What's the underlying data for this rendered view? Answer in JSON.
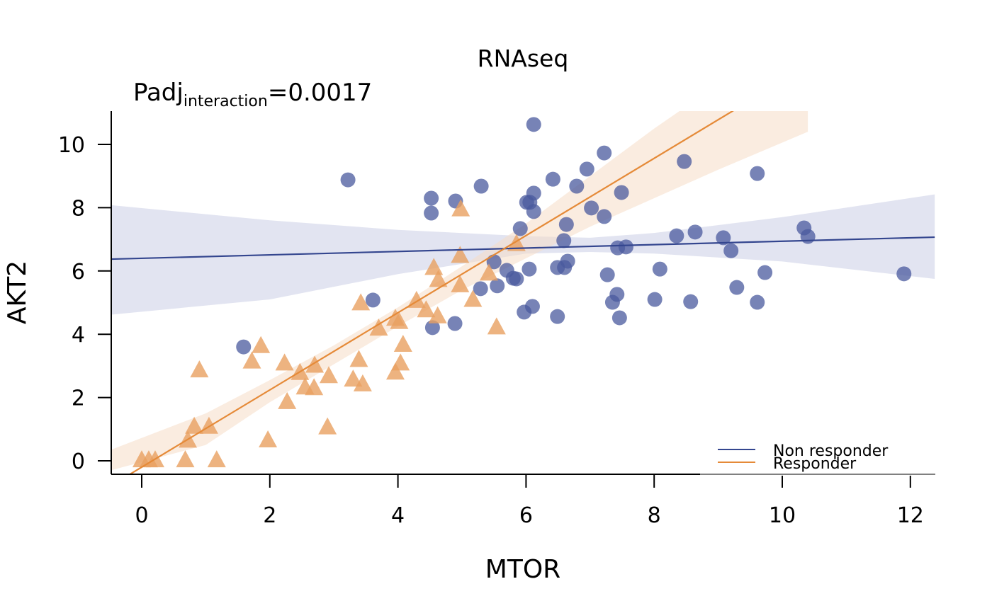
{
  "chart_data": {
    "type": "scatter",
    "title": "RNAseq",
    "annotation": {
      "main": "Padj",
      "subscript": "interaction",
      "suffix": "=0.0017"
    },
    "xlabel": "MTOR",
    "ylabel": "AKT2",
    "xlim": [
      -0.48,
      12.38
    ],
    "ylim": [
      -0.4,
      11.05
    ],
    "xticks": [
      0,
      2,
      4,
      6,
      8,
      10,
      12
    ],
    "yticks": [
      0,
      2,
      4,
      6,
      8,
      10
    ],
    "xtick_labels": [
      "0",
      "2",
      "4",
      "6",
      "8",
      "10",
      "12"
    ],
    "ytick_labels": [
      "0",
      "2",
      "4",
      "6",
      "8",
      "10"
    ],
    "grid": false,
    "legend": {
      "position": "bottom-right",
      "entries": [
        "Non responder",
        "Responder"
      ]
    },
    "series": [
      {
        "name": "Non responder",
        "marker": "circle",
        "color": "#4a5a9e",
        "line_color": "#34468f",
        "band_color": "#c5c9e3",
        "fit": {
          "intercept": 6.4,
          "slope": 0.054
        },
        "ci": [
          [
            -0.48,
            4.62,
            8.08
          ],
          [
            2,
            5.1,
            7.6
          ],
          [
            4,
            5.9,
            7.3
          ],
          [
            6,
            6.55,
            7.1
          ],
          [
            7,
            6.6,
            7.05
          ],
          [
            8,
            6.55,
            7.2
          ],
          [
            10,
            6.3,
            7.7
          ],
          [
            12.38,
            5.75,
            8.42
          ]
        ],
        "points": [
          [
            6.12,
            10.63
          ],
          [
            7.22,
            9.73
          ],
          [
            8.47,
            9.46
          ],
          [
            9.61,
            9.08
          ],
          [
            3.22,
            8.88
          ],
          [
            6.95,
            9.22
          ],
          [
            6.42,
            8.9
          ],
          [
            5.3,
            8.68
          ],
          [
            6.79,
            8.68
          ],
          [
            4.52,
            8.3
          ],
          [
            4.9,
            8.21
          ],
          [
            6.12,
            8.46
          ],
          [
            7.49,
            8.48
          ],
          [
            4.52,
            7.83
          ],
          [
            6.01,
            8.17
          ],
          [
            6.06,
            8.17
          ],
          [
            6.12,
            7.88
          ],
          [
            7.02,
            7.99
          ],
          [
            7.22,
            7.72
          ],
          [
            5.91,
            7.34
          ],
          [
            6.63,
            7.47
          ],
          [
            8.35,
            7.11
          ],
          [
            8.64,
            7.23
          ],
          [
            9.08,
            7.05
          ],
          [
            10.34,
            7.36
          ],
          [
            10.4,
            7.09
          ],
          [
            9.2,
            6.64
          ],
          [
            6.59,
            6.96
          ],
          [
            7.43,
            6.73
          ],
          [
            7.56,
            6.76
          ],
          [
            5.5,
            6.29
          ],
          [
            6.65,
            6.31
          ],
          [
            5.7,
            6.02
          ],
          [
            6.05,
            6.06
          ],
          [
            6.49,
            6.11
          ],
          [
            6.6,
            6.11
          ],
          [
            7.27,
            5.88
          ],
          [
            8.09,
            6.06
          ],
          [
            9.73,
            5.95
          ],
          [
            11.9,
            5.91
          ],
          [
            5.8,
            5.77
          ],
          [
            5.85,
            5.75
          ],
          [
            5.55,
            5.53
          ],
          [
            5.29,
            5.44
          ],
          [
            9.29,
            5.48
          ],
          [
            7.42,
            5.26
          ],
          [
            7.35,
            5.01
          ],
          [
            8.01,
            5.1
          ],
          [
            8.57,
            5.03
          ],
          [
            9.61,
            5.01
          ],
          [
            3.61,
            5.08
          ],
          [
            6.1,
            4.88
          ],
          [
            5.97,
            4.7
          ],
          [
            6.49,
            4.56
          ],
          [
            7.46,
            4.52
          ],
          [
            4.89,
            4.34
          ],
          [
            4.54,
            4.21
          ],
          [
            1.59,
            3.6
          ]
        ]
      },
      {
        "name": "Responder",
        "marker": "triangle",
        "color": "#e8a060",
        "line_color": "#e58a38",
        "band_color": "#f6dcc6",
        "fit": {
          "intercept": -0.2,
          "slope": 1.22
        },
        "ci": [
          [
            -0.48,
            -0.3,
            0.35
          ],
          [
            1,
            0.5,
            1.5
          ],
          [
            2,
            1.85,
            2.55
          ],
          [
            3,
            3.05,
            3.65
          ],
          [
            4,
            4.25,
            4.85
          ],
          [
            5,
            5.4,
            6.15
          ],
          [
            6,
            6.4,
            7.5
          ],
          [
            7,
            7.4,
            9.0
          ],
          [
            8,
            8.3,
            10.5
          ],
          [
            9,
            9.2,
            11.9
          ],
          [
            10.4,
            10.4,
            13.9
          ]
        ],
        "points": [
          [
            4.98,
            7.95
          ],
          [
            5.85,
            6.85
          ],
          [
            4.97,
            6.48
          ],
          [
            4.56,
            6.1
          ],
          [
            5.42,
            5.92
          ],
          [
            4.63,
            5.72
          ],
          [
            4.97,
            5.55
          ],
          [
            3.42,
            4.98
          ],
          [
            5.17,
            5.09
          ],
          [
            4.29,
            5.06
          ],
          [
            3.96,
            4.49
          ],
          [
            4.02,
            4.39
          ],
          [
            4.44,
            4.76
          ],
          [
            4.62,
            4.57
          ],
          [
            3.7,
            4.18
          ],
          [
            5.54,
            4.22
          ],
          [
            1.86,
            3.63
          ],
          [
            4.08,
            3.67
          ],
          [
            1.72,
            3.14
          ],
          [
            3.39,
            3.19
          ],
          [
            2.23,
            3.08
          ],
          [
            2.7,
            3.01
          ],
          [
            4.04,
            3.08
          ],
          [
            0.9,
            2.86
          ],
          [
            2.47,
            2.78
          ],
          [
            2.92,
            2.68
          ],
          [
            3.96,
            2.79
          ],
          [
            3.3,
            2.57
          ],
          [
            3.45,
            2.42
          ],
          [
            2.55,
            2.32
          ],
          [
            2.69,
            2.3
          ],
          [
            2.27,
            1.86
          ],
          [
            0.82,
            1.08
          ],
          [
            1.05,
            1.08
          ],
          [
            2.9,
            1.06
          ],
          [
            0.72,
            0.64
          ],
          [
            1.97,
            0.65
          ],
          [
            0.0,
            0.02
          ],
          [
            0.11,
            0.02
          ],
          [
            0.21,
            0.02
          ],
          [
            0.68,
            0.02
          ],
          [
            1.17,
            0.02
          ]
        ]
      }
    ]
  }
}
